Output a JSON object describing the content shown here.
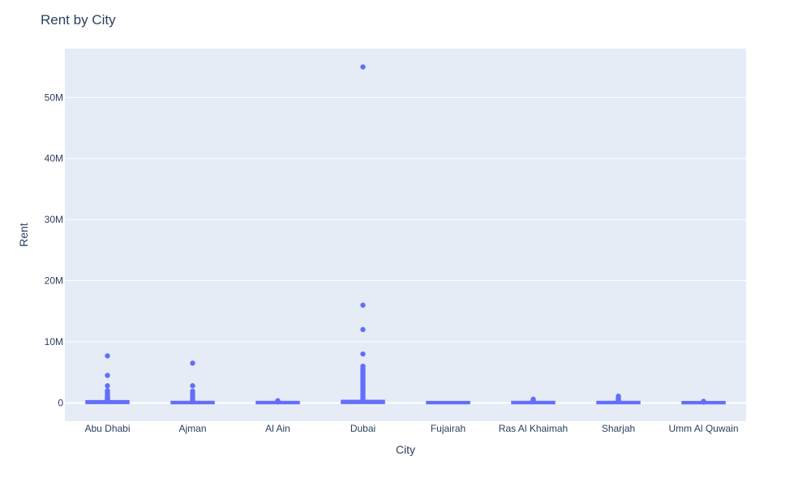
{
  "chart_data": {
    "type": "box",
    "title": "Rent by City",
    "xlabel": "City",
    "ylabel": "Rent",
    "ylim": [
      -3000000,
      58000000
    ],
    "yticks": [
      0,
      10000000,
      20000000,
      30000000,
      40000000,
      50000000
    ],
    "ytick_labels": [
      "0",
      "10M",
      "20M",
      "30M",
      "40M",
      "50M"
    ],
    "categories": [
      "Abu Dhabi",
      "Ajman",
      "Al Ain",
      "Dubai",
      "Fujairah",
      "Ras Al Khaimah",
      "Sharjah",
      "Umm Al Quwain"
    ],
    "boxes": [
      {
        "city": "Abu Dhabi",
        "q1": 60000,
        "median": 110000,
        "q3": 200000,
        "whisker_low": 0,
        "whisker_high": 400000,
        "outliers": [
          7700000,
          4500000,
          2800000,
          2000000,
          1800000,
          1600000,
          1400000,
          1200000,
          1000000,
          900000,
          800000,
          700000,
          600000,
          500000
        ]
      },
      {
        "city": "Ajman",
        "q1": 30000,
        "median": 50000,
        "q3": 80000,
        "whisker_low": 0,
        "whisker_high": 150000,
        "outliers": [
          6500000,
          2800000,
          1900000,
          1500000,
          1200000,
          900000,
          600000,
          400000,
          300000,
          200000
        ]
      },
      {
        "city": "Al Ain",
        "q1": 30000,
        "median": 45000,
        "q3": 70000,
        "whisker_low": 0,
        "whisker_high": 120000,
        "outliers": [
          350000,
          280000,
          220000,
          180000
        ]
      },
      {
        "city": "Dubai",
        "q1": 70000,
        "median": 130000,
        "q3": 250000,
        "whisker_low": 0,
        "whisker_high": 520000,
        "outliers": [
          55000000,
          16000000,
          12000000,
          8000000,
          6000000,
          5700000,
          5400000,
          5100000,
          4800000,
          4500000,
          4200000,
          3900000,
          3600000,
          3300000,
          3000000,
          2700000,
          2400000,
          2100000,
          1800000,
          1500000,
          1200000,
          1000000,
          800000,
          650000
        ]
      },
      {
        "city": "Fujairah",
        "q1": 25000,
        "median": 40000,
        "q3": 60000,
        "whisker_low": 0,
        "whisker_high": 100000,
        "outliers": []
      },
      {
        "city": "Ras Al Khaimah",
        "q1": 30000,
        "median": 50000,
        "q3": 80000,
        "whisker_low": 0,
        "whisker_high": 150000,
        "outliers": [
          600000,
          500000,
          400000,
          300000,
          250000,
          200000
        ]
      },
      {
        "city": "Sharjah",
        "q1": 30000,
        "median": 50000,
        "q3": 80000,
        "whisker_low": 0,
        "whisker_high": 150000,
        "outliers": [
          1100000,
          950000,
          800000,
          650000,
          500000,
          400000,
          300000,
          200000
        ]
      },
      {
        "city": "Umm Al Quwain",
        "q1": 20000,
        "median": 35000,
        "q3": 55000,
        "whisker_low": 0,
        "whisker_high": 90000,
        "outliers": [
          250000,
          200000,
          150000
        ]
      }
    ],
    "colors": {
      "marker": "#636efa",
      "plot_bg": "#e5ecf6",
      "grid": "#ffffff",
      "text": "#2a3f5f"
    },
    "grid": true,
    "legend": "none"
  }
}
